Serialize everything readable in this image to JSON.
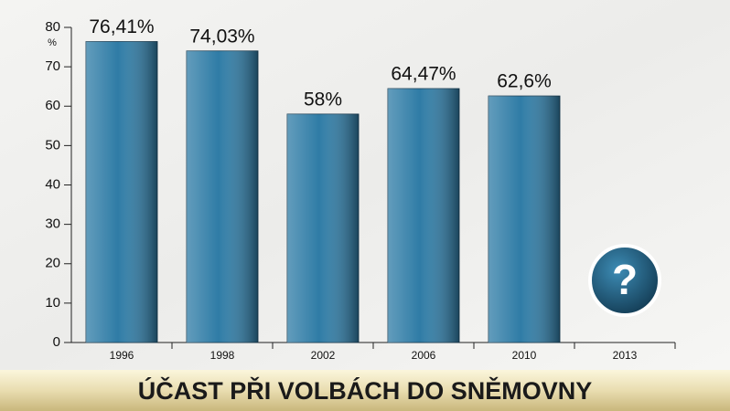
{
  "chart_data": {
    "type": "bar",
    "title": "ÚČAST PŘI VOLBÁCH DO SNĚMOVNY",
    "y_label": "%",
    "categories": [
      "1996",
      "1998",
      "2002",
      "2006",
      "2010",
      "2013"
    ],
    "values": [
      76.41,
      74.03,
      58,
      64.47,
      62.6,
      null
    ],
    "value_labels": [
      "76,41%",
      "74,03%",
      "58%",
      "64,47%",
      "62,6%",
      null
    ],
    "annotation": "?",
    "color": "#2f7ca6",
    "ylim": [
      0,
      80
    ],
    "yticks": [
      0,
      10,
      20,
      30,
      40,
      50,
      60,
      70,
      80
    ],
    "grid": false
  }
}
